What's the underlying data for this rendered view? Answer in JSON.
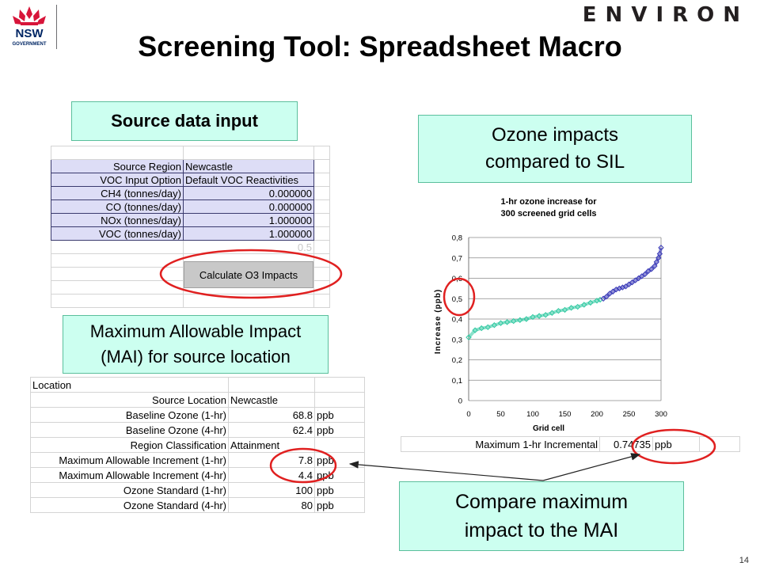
{
  "header": {
    "title": "Screening Tool: Spreadsheet Macro",
    "brand": "ENVIRON",
    "logo_text": "NSW",
    "logo_subtext": "GOVERNMENT"
  },
  "callouts": {
    "source": "Source data input",
    "ozone_line1": "Ozone impacts",
    "ozone_line2": "compared to SIL",
    "mai_line1": "Maximum Allowable Impact",
    "mai_line2": "(MAI) for source location",
    "compare_line1": "Compare maximum",
    "compare_line2": "impact to the MAI"
  },
  "source_table": {
    "rows": [
      {
        "label": "Source Region",
        "value": "Newcastle"
      },
      {
        "label": "VOC Input Option",
        "value": "Default VOC Reactivities"
      },
      {
        "label": "CH4 (tonnes/day)",
        "value": "0.000000"
      },
      {
        "label": "CO (tonnes/day)",
        "value": "0.000000"
      },
      {
        "label": "NOx (tonnes/day)",
        "value": "1.000000"
      },
      {
        "label": "VOC (tonnes/day)",
        "value": "1.000000"
      }
    ],
    "ghost_value": "0.5",
    "button_label": "Calculate O3 Impacts"
  },
  "mai_table": {
    "header": "Location",
    "rows": [
      {
        "label": "Source Location",
        "value": "Newcastle",
        "unit": ""
      },
      {
        "label": "Baseline Ozone (1-hr)",
        "value": "68.8",
        "unit": "ppb"
      },
      {
        "label": "Baseline Ozone (4-hr)",
        "value": "62.4",
        "unit": "ppb"
      },
      {
        "label": "Region Classification",
        "value": "Attainment",
        "unit": ""
      },
      {
        "label": "Maximum Allowable Increment (1-hr)",
        "value": "7.8",
        "unit": "ppb"
      },
      {
        "label": "Maximum Allowable Increment (4-hr)",
        "value": "4.4",
        "unit": "ppb"
      },
      {
        "label": "Ozone Standard (1-hr)",
        "value": "100",
        "unit": "ppb"
      },
      {
        "label": "Ozone Standard (4-hr)",
        "value": "80",
        "unit": "ppb"
      }
    ]
  },
  "max_table": {
    "label": "Maximum 1-hr Incremental",
    "value": "0.74735",
    "unit": "ppb"
  },
  "chart_data": {
    "type": "scatter",
    "title_line1": "1-hr ozone increase for",
    "title_line2": "300 screened grid cells",
    "xlabel": "Grid cell",
    "ylabel": "Increase (ppb)",
    "xlim": [
      0,
      300
    ],
    "ylim": [
      0,
      0.8
    ],
    "xticks": [
      "0",
      "50",
      "100",
      "150",
      "200",
      "250",
      "300"
    ],
    "yticks": [
      "0",
      "0,1",
      "0,2",
      "0,3",
      "0,4",
      "0,5",
      "0,6",
      "0,7",
      "0,8"
    ],
    "grid": true,
    "series": [
      {
        "color": "#2ec8a0",
        "x": [
          0,
          10,
          20,
          30,
          40,
          50,
          60,
          70,
          80,
          90,
          100,
          110,
          120,
          130,
          140,
          150,
          160,
          170,
          180,
          190,
          200,
          205
        ],
        "y": [
          0.31,
          0.345,
          0.355,
          0.36,
          0.37,
          0.38,
          0.385,
          0.39,
          0.395,
          0.4,
          0.41,
          0.415,
          0.42,
          0.43,
          0.44,
          0.445,
          0.455,
          0.46,
          0.47,
          0.48,
          0.49,
          0.495
        ]
      },
      {
        "color": "#3a3ab8",
        "x": [
          210,
          215,
          220,
          225,
          230,
          235,
          240,
          245,
          250,
          255,
          260,
          265,
          270,
          275,
          280,
          285,
          290,
          293,
          296,
          298,
          300
        ],
        "y": [
          0.5,
          0.51,
          0.525,
          0.535,
          0.545,
          0.55,
          0.555,
          0.56,
          0.57,
          0.58,
          0.59,
          0.6,
          0.61,
          0.62,
          0.635,
          0.645,
          0.66,
          0.68,
          0.7,
          0.72,
          0.75
        ]
      }
    ]
  },
  "page_number": "14",
  "colors": {
    "callout_fill": "#ccfff0",
    "highlight_ring": "#e02020",
    "source_box_fill": "#ddddf6"
  }
}
